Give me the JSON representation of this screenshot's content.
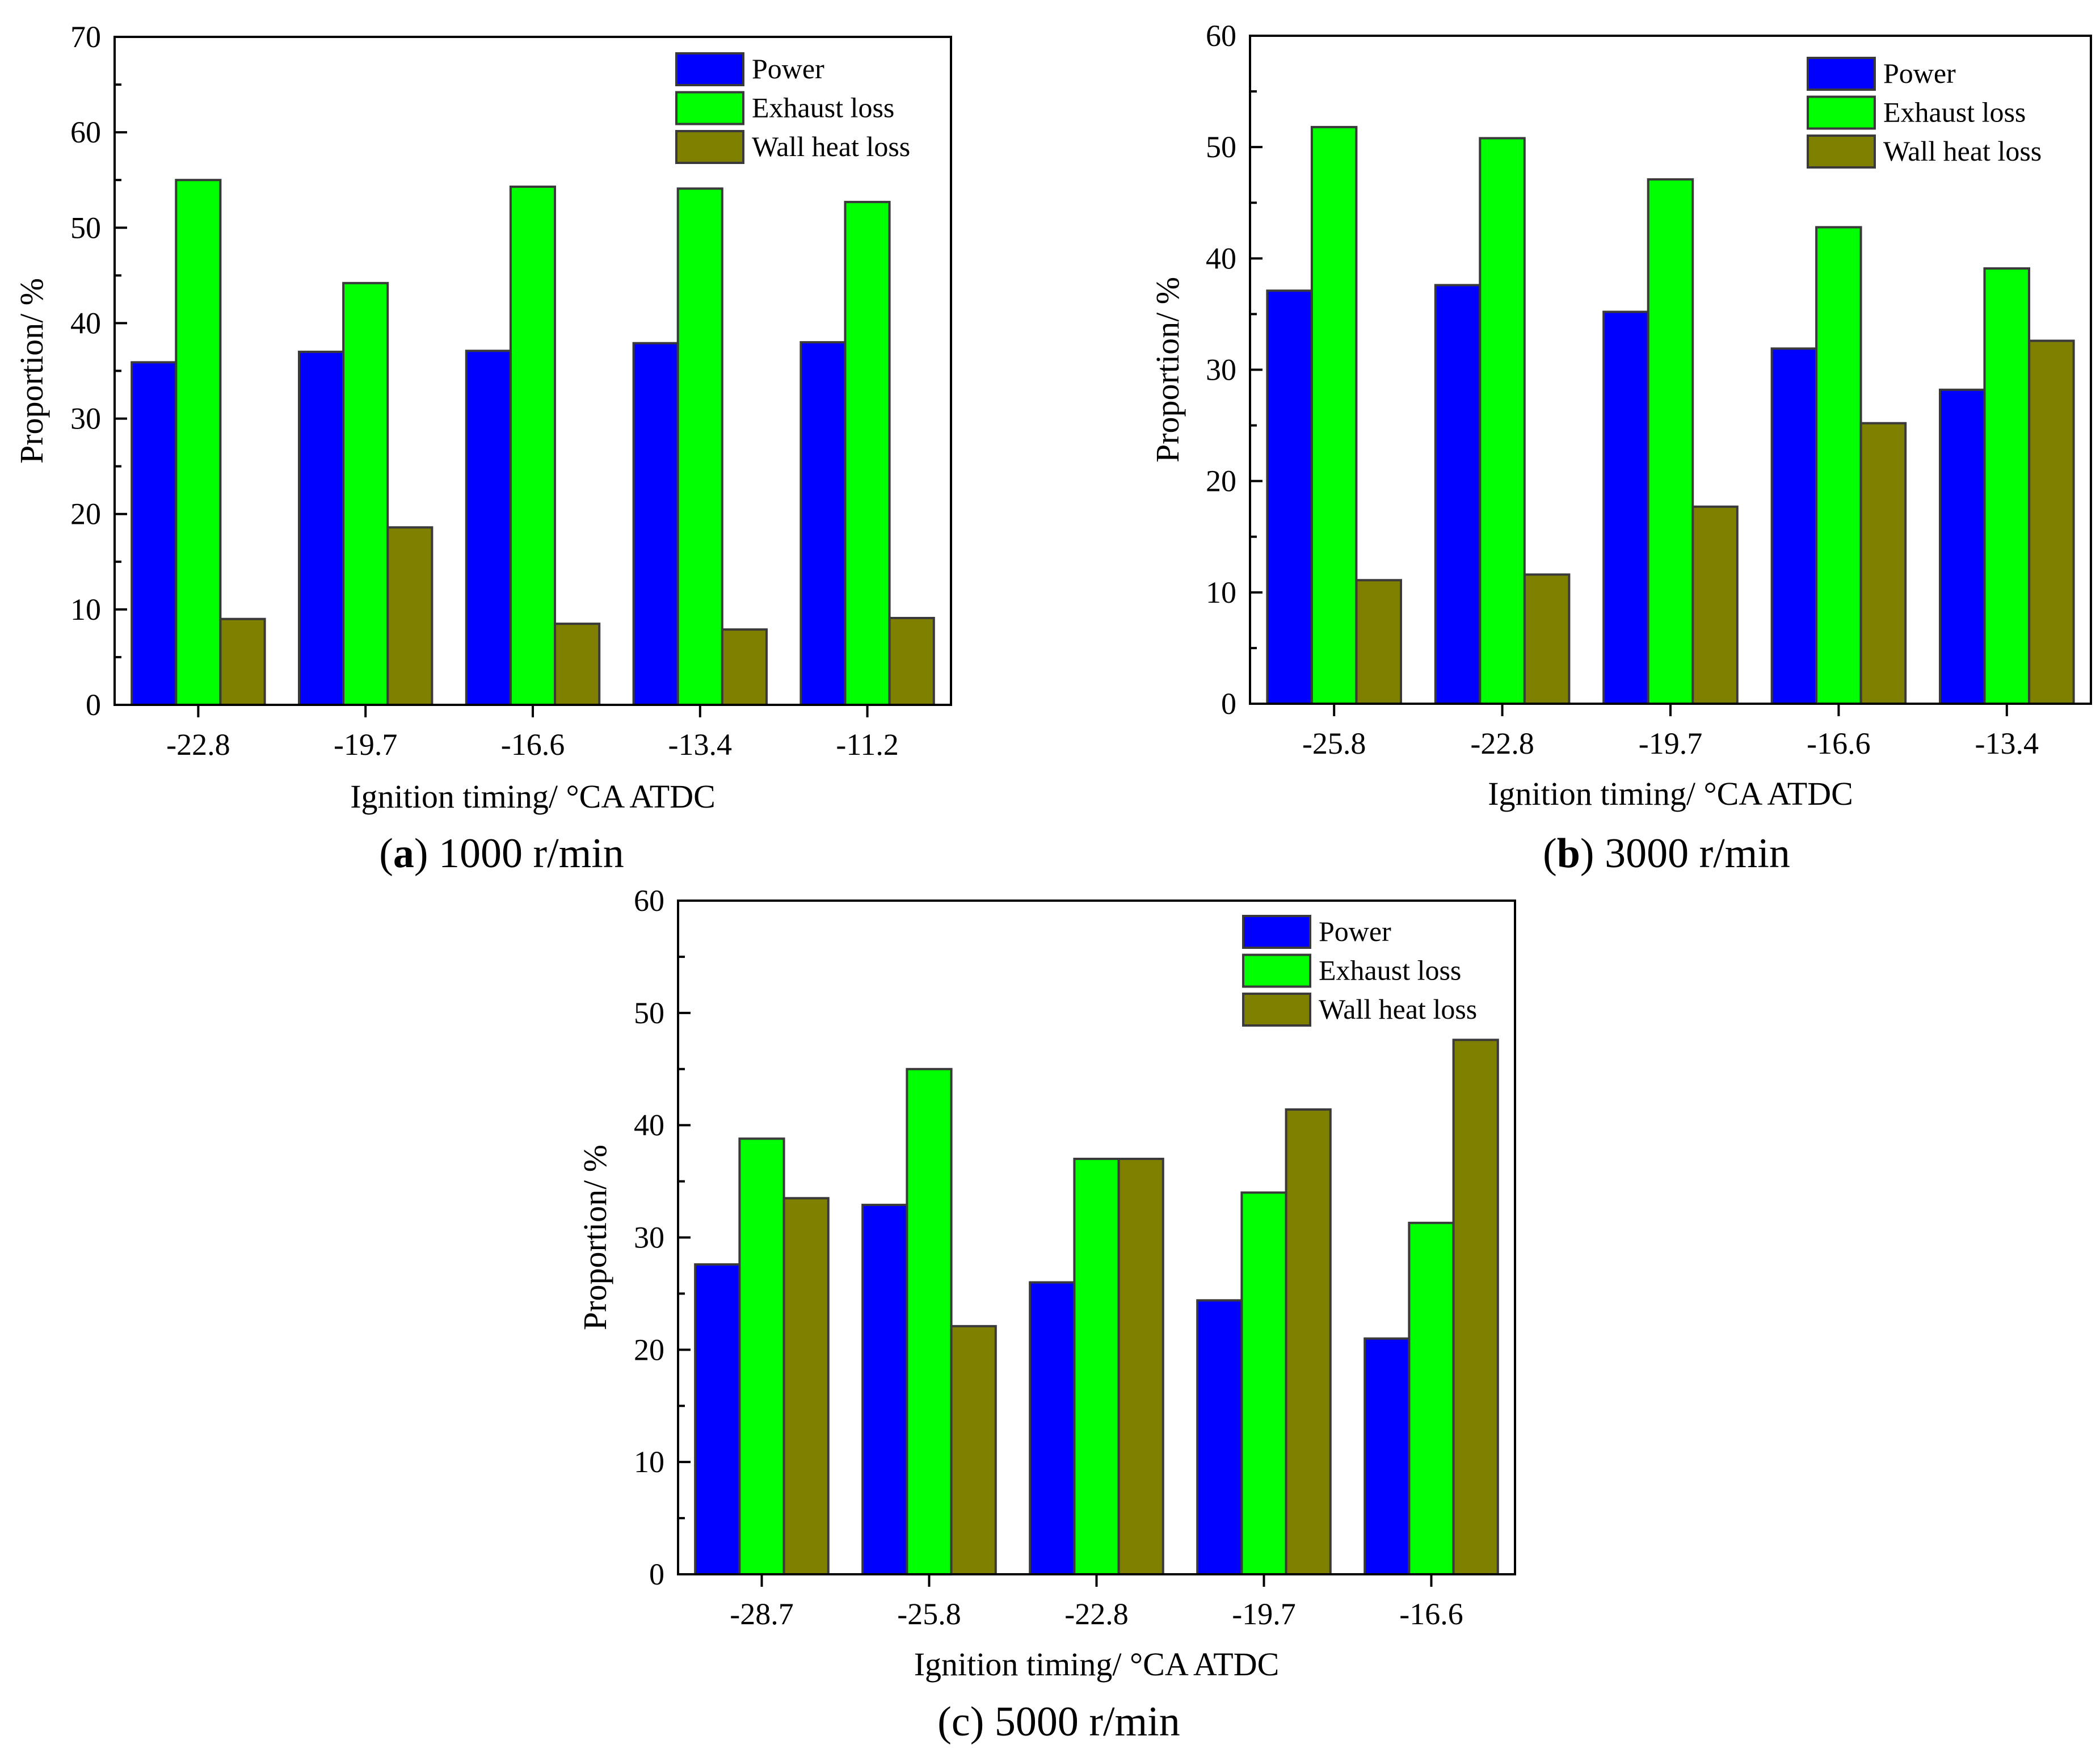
{
  "colors": {
    "power": "#0000ff",
    "exhaust": "#00ff00",
    "wall": "#808000",
    "bar_edge": "#3a3a3a",
    "axis": "#000000"
  },
  "chart_data": [
    {
      "type": "bar",
      "caption_letter": "a",
      "caption_rest": " 1000 r/min",
      "xlabel": "Ignition timing/ °CA ATDC",
      "ylabel": "Proportion/ %",
      "ylim": [
        0,
        70
      ],
      "yticks": [
        0,
        10,
        20,
        30,
        40,
        50,
        60,
        70
      ],
      "legend_position": "top-right",
      "categories": [
        "-22.8",
        "-19.7",
        "-16.6",
        "-13.4",
        "-11.2"
      ],
      "series": [
        {
          "name": "Power",
          "values": [
            35.9,
            37.0,
            37.1,
            37.9,
            38.0
          ]
        },
        {
          "name": "Exhaust loss",
          "values": [
            55.0,
            44.2,
            54.3,
            54.1,
            52.7
          ]
        },
        {
          "name": "Wall heat loss",
          "values": [
            9.0,
            18.6,
            8.5,
            7.9,
            9.1
          ]
        }
      ]
    },
    {
      "type": "bar",
      "caption_letter": "b",
      "caption_rest": " 3000 r/min",
      "xlabel": "Ignition timing/ °CA ATDC",
      "ylabel": "Proportion/ %",
      "ylim": [
        0,
        60
      ],
      "yticks": [
        0,
        10,
        20,
        30,
        40,
        50,
        60
      ],
      "legend_position": "top-right",
      "categories": [
        "-25.8",
        "-22.8",
        "-19.7",
        "-16.6",
        "-13.4"
      ],
      "series": [
        {
          "name": "Power",
          "values": [
            37.1,
            37.6,
            35.2,
            31.9,
            28.2
          ]
        },
        {
          "name": "Exhaust loss",
          "values": [
            51.8,
            50.8,
            47.1,
            42.8,
            39.1
          ]
        },
        {
          "name": "Wall heat loss",
          "values": [
            11.1,
            11.6,
            17.7,
            25.2,
            32.6
          ]
        }
      ]
    },
    {
      "type": "bar",
      "caption_letter": "",
      "caption_rest": "(c) 5000 r/min",
      "xlabel": "Ignition timing/ °CA ATDC",
      "ylabel": "Proportion/ %",
      "ylim": [
        0,
        60
      ],
      "yticks": [
        0,
        10,
        20,
        30,
        40,
        50,
        60
      ],
      "legend_position": "top-right",
      "categories": [
        "-28.7",
        "-25.8",
        "-22.8",
        "-19.7",
        "-16.6"
      ],
      "series": [
        {
          "name": "Power",
          "values": [
            27.6,
            32.9,
            26.0,
            24.4,
            21.0
          ]
        },
        {
          "name": "Exhaust loss",
          "values": [
            38.8,
            45.0,
            37.0,
            34.0,
            31.3
          ]
        },
        {
          "name": "Wall heat loss",
          "values": [
            33.5,
            22.1,
            37.0,
            41.4,
            47.6
          ]
        }
      ]
    }
  ]
}
